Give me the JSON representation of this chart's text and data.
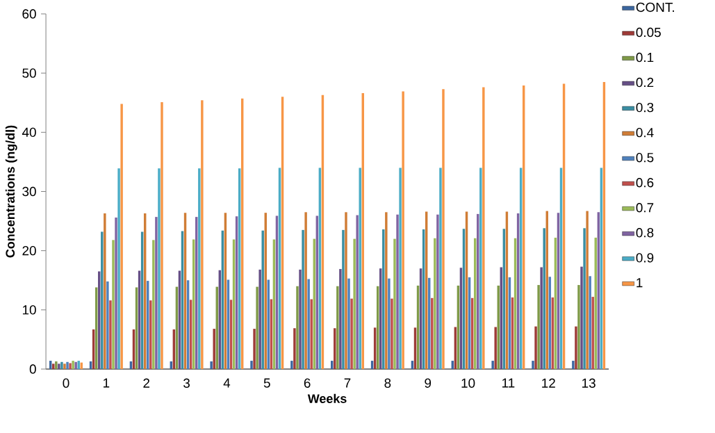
{
  "chart_data": {
    "type": "bar",
    "xlabel": "Weeks",
    "ylabel": "Concentrations (ng/dl)",
    "categories": [
      "0",
      "1",
      "2",
      "3",
      "4",
      "5",
      "6",
      "7",
      "8",
      "9",
      "10",
      "11",
      "12",
      "13"
    ],
    "ylim": [
      0,
      60
    ],
    "yticks": [
      0,
      10,
      20,
      30,
      40,
      50,
      60
    ],
    "legend": "right",
    "series": [
      {
        "name": "CONT.",
        "color": "#3c67a0",
        "values": [
          1.4,
          1.3,
          1.3,
          1.3,
          1.3,
          1.4,
          1.4,
          1.4,
          1.4,
          1.4,
          1.4,
          1.4,
          1.4,
          1.4
        ]
      },
      {
        "name": "0.05",
        "color": "#9e3b38",
        "values": [
          0.9,
          6.7,
          6.7,
          6.7,
          6.8,
          6.8,
          6.9,
          6.9,
          7.0,
          7.0,
          7.1,
          7.1,
          7.2,
          7.2
        ]
      },
      {
        "name": "0.1",
        "color": "#7f9a48",
        "values": [
          1.3,
          13.8,
          13.8,
          13.9,
          13.9,
          13.9,
          14.0,
          14.0,
          14.0,
          14.1,
          14.1,
          14.1,
          14.2,
          14.2
        ]
      },
      {
        "name": "0.2",
        "color": "#664f86",
        "values": [
          0.9,
          16.5,
          16.6,
          16.6,
          16.7,
          16.8,
          16.8,
          16.9,
          17.0,
          17.0,
          17.1,
          17.2,
          17.2,
          17.3
        ]
      },
      {
        "name": "0.3",
        "color": "#3a8ea3",
        "values": [
          1.2,
          23.2,
          23.2,
          23.3,
          23.4,
          23.4,
          23.5,
          23.5,
          23.6,
          23.6,
          23.7,
          23.7,
          23.8,
          23.8
        ]
      },
      {
        "name": "0.4",
        "color": "#d07d36",
        "values": [
          0.9,
          26.3,
          26.3,
          26.4,
          26.4,
          26.4,
          26.5,
          26.5,
          26.5,
          26.6,
          26.6,
          26.6,
          26.7,
          26.7
        ]
      },
      {
        "name": "0.5",
        "color": "#4f81bd",
        "values": [
          1.2,
          14.8,
          14.9,
          15.0,
          15.1,
          15.1,
          15.2,
          15.3,
          15.3,
          15.4,
          15.5,
          15.5,
          15.6,
          15.7
        ]
      },
      {
        "name": "0.6",
        "color": "#c0504d",
        "values": [
          1.0,
          11.6,
          11.6,
          11.7,
          11.7,
          11.8,
          11.8,
          11.9,
          11.9,
          12.0,
          12.0,
          12.1,
          12.1,
          12.2
        ]
      },
      {
        "name": "0.7",
        "color": "#9bbb59",
        "values": [
          1.4,
          21.8,
          21.8,
          21.9,
          21.9,
          21.9,
          22.0,
          22.0,
          22.0,
          22.1,
          22.1,
          22.1,
          22.2,
          22.2
        ]
      },
      {
        "name": "0.8",
        "color": "#8064a2",
        "values": [
          1.2,
          25.6,
          25.7,
          25.7,
          25.8,
          25.9,
          25.9,
          26.0,
          26.1,
          26.1,
          26.2,
          26.3,
          26.4,
          26.5
        ]
      },
      {
        "name": "0.9",
        "color": "#4bacc6",
        "values": [
          1.4,
          33.9,
          33.9,
          33.9,
          33.9,
          34.0,
          34.0,
          34.0,
          34.0,
          34.0,
          34.0,
          34.0,
          34.0,
          34.0
        ]
      },
      {
        "name": "1",
        "color": "#f79646",
        "values": [
          1.1,
          44.8,
          45.1,
          45.4,
          45.7,
          46.0,
          46.3,
          46.6,
          46.9,
          47.3,
          47.6,
          47.9,
          48.2,
          48.5
        ]
      }
    ]
  }
}
